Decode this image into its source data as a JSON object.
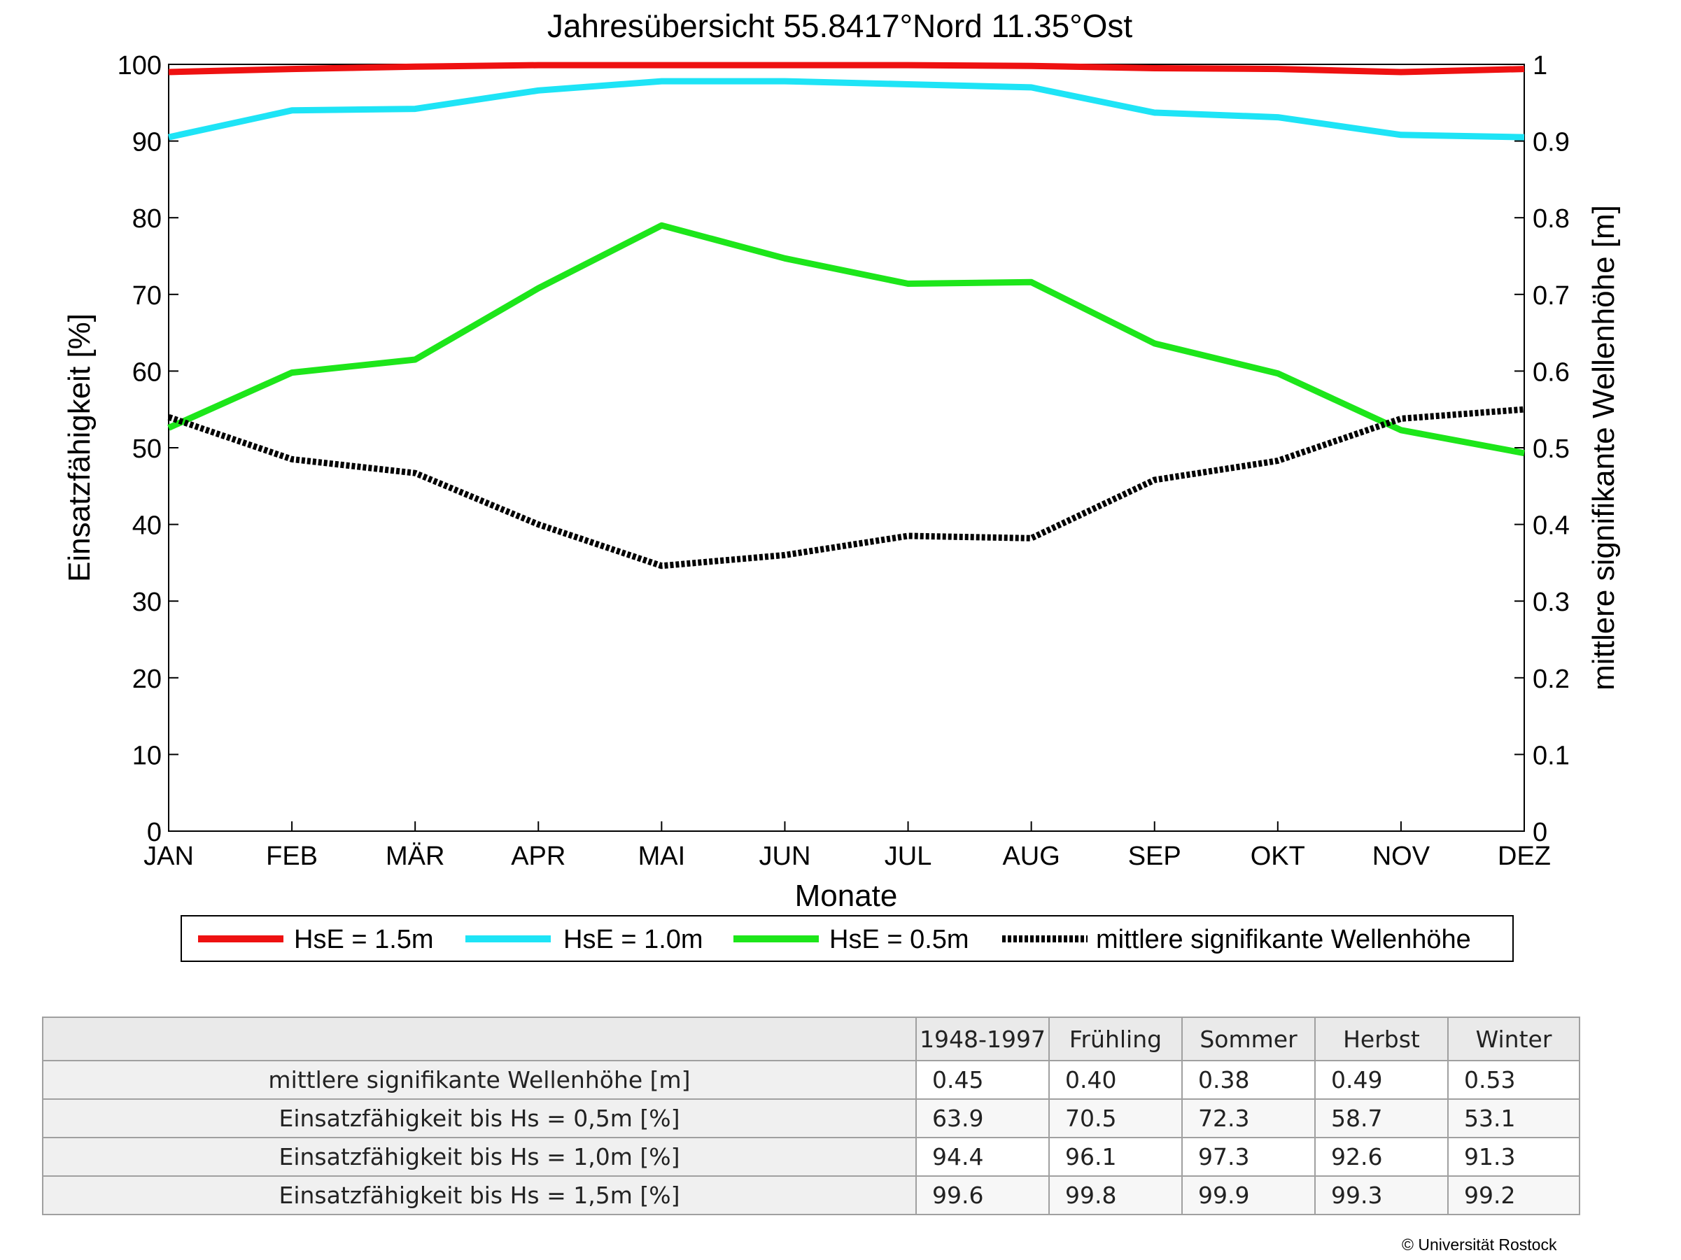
{
  "chart_data": {
    "type": "line",
    "title": "Jahresübersicht  55.8417°Nord  11.35°Ost",
    "xlabel": "Monate",
    "ylabel": "Einsatzfähigkeit [%]",
    "ylabel_right": "mittlere signifikante Wellenhöhe [m]",
    "categories": [
      "JAN",
      "FEB",
      "MÄR",
      "APR",
      "MAI",
      "JUN",
      "JUL",
      "AUG",
      "SEP",
      "OKT",
      "NOV",
      "DEZ"
    ],
    "ylim": [
      0,
      100
    ],
    "y_ticks": [
      "0",
      "10",
      "20",
      "30",
      "40",
      "50",
      "60",
      "70",
      "80",
      "90",
      "100"
    ],
    "ylim_right": [
      0,
      1
    ],
    "y_ticks_right": [
      "0",
      "0.1",
      "0.2",
      "0.3",
      "0.4",
      "0.5",
      "0.6",
      "0.7",
      "0.8",
      "0.9",
      "1"
    ],
    "grid": false,
    "legend_position": "bottom",
    "series": [
      {
        "name": "HsE = 1.5m",
        "color": "#ee1111",
        "axis": "left",
        "style": "solid",
        "values": [
          99.0,
          99.4,
          99.7,
          99.9,
          99.9,
          99.9,
          99.9,
          99.8,
          99.5,
          99.4,
          99.0,
          99.4
        ]
      },
      {
        "name": "HsE = 1.0m",
        "color": "#1ee4f6",
        "axis": "left",
        "style": "solid",
        "values": [
          90.5,
          94.0,
          94.2,
          96.6,
          97.8,
          97.8,
          97.4,
          97.0,
          93.7,
          93.1,
          90.8,
          90.5
        ]
      },
      {
        "name": "HsE = 0.5m",
        "color": "#1de61a",
        "axis": "left",
        "style": "solid",
        "values": [
          52.6,
          59.8,
          61.5,
          70.8,
          79.0,
          74.7,
          71.4,
          71.6,
          63.6,
          59.7,
          52.3,
          49.3
        ]
      },
      {
        "name": "mittlere signifikante Wellenhöhe",
        "color": "#000000",
        "axis": "right",
        "style": "dotted",
        "values": [
          0.54,
          0.485,
          0.467,
          0.4,
          0.346,
          0.36,
          0.385,
          0.382,
          0.458,
          0.483,
          0.538,
          0.55
        ]
      }
    ]
  },
  "table": {
    "headers": [
      "1948-1997",
      "Frühling",
      "Sommer",
      "Herbst",
      "Winter"
    ],
    "rows": [
      {
        "label": "mittlere signifikante Wellenhöhe [m]",
        "values": [
          "0.45",
          "0.40",
          "0.38",
          "0.49",
          "0.53"
        ]
      },
      {
        "label": "Einsatzfähigkeit bis Hs = 0,5m [%]",
        "values": [
          "63.9",
          "70.5",
          "72.3",
          "58.7",
          "53.1"
        ]
      },
      {
        "label": "Einsatzfähigkeit bis Hs = 1,0m [%]",
        "values": [
          "94.4",
          "96.1",
          "97.3",
          "92.6",
          "91.3"
        ]
      },
      {
        "label": "Einsatzfähigkeit bis Hs = 1,5m [%]",
        "values": [
          "99.6",
          "99.8",
          "99.9",
          "99.3",
          "99.2"
        ]
      }
    ]
  },
  "copyright": "© Universität Rostock"
}
